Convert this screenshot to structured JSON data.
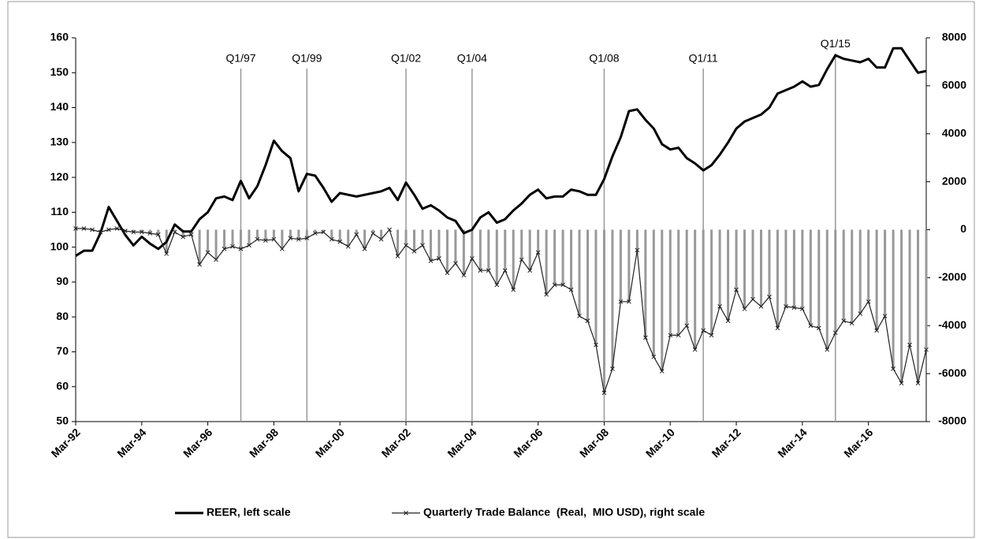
{
  "chart_data": {
    "type": "line",
    "x": [
      1992,
      1992.25,
      1992.5,
      1992.75,
      1993,
      1993.25,
      1993.5,
      1993.75,
      1994,
      1994.25,
      1994.5,
      1994.75,
      1995,
      1995.25,
      1995.5,
      1995.75,
      1996,
      1996.25,
      1996.5,
      1996.75,
      1997,
      1997.25,
      1997.5,
      1997.75,
      1998,
      1998.25,
      1998.5,
      1998.75,
      1999,
      1999.25,
      1999.5,
      1999.75,
      2000,
      2000.25,
      2000.5,
      2000.75,
      2001,
      2001.25,
      2001.5,
      2001.75,
      2002,
      2002.25,
      2002.5,
      2002.75,
      2003,
      2003.25,
      2003.5,
      2003.75,
      2004,
      2004.25,
      2004.5,
      2004.75,
      2005,
      2005.25,
      2005.5,
      2005.75,
      2006,
      2006.25,
      2006.5,
      2006.75,
      2007,
      2007.25,
      2007.5,
      2007.75,
      2008,
      2008.25,
      2008.5,
      2008.75,
      2009,
      2009.25,
      2009.5,
      2009.75,
      2010,
      2010.25,
      2010.5,
      2010.75,
      2011,
      2011.25,
      2011.5,
      2011.75,
      2012,
      2012.25,
      2012.5,
      2012.75,
      2013,
      2013.25,
      2013.5,
      2013.75,
      2014,
      2014.25,
      2014.5,
      2014.75,
      2015,
      2015.25,
      2015.5,
      2015.75,
      2016,
      2016.25,
      2016.5,
      2016.75,
      2017,
      2017.25,
      2017.5,
      2017.75
    ],
    "xlim": [
      1992,
      2017.75
    ],
    "xticks": [
      {
        "value": 1992,
        "label": "Mar-92"
      },
      {
        "value": 1994,
        "label": "Mar-94"
      },
      {
        "value": 1996,
        "label": "Mar-96"
      },
      {
        "value": 1998,
        "label": "Mar-98"
      },
      {
        "value": 2000,
        "label": "Mar-00"
      },
      {
        "value": 2002,
        "label": "Mar-02"
      },
      {
        "value": 2004,
        "label": "Mar-04"
      },
      {
        "value": 2006,
        "label": "Mar-06"
      },
      {
        "value": 2008,
        "label": "Mar-08"
      },
      {
        "value": 2010,
        "label": "Mar-10"
      },
      {
        "value": 2012,
        "label": "Mar-12"
      },
      {
        "value": 2014,
        "label": "Mar-14"
      },
      {
        "value": 2016,
        "label": "Mar-16"
      }
    ],
    "ylim": [
      50,
      160
    ],
    "yticks": [
      50,
      60,
      70,
      80,
      90,
      100,
      110,
      120,
      130,
      140,
      150,
      160
    ],
    "y2lim": [
      -8000,
      8000
    ],
    "y2ticks": [
      -8000,
      -6000,
      -4000,
      -2000,
      0,
      2000,
      4000,
      6000,
      8000
    ],
    "grid": false,
    "annotations": [
      {
        "text": "Q1/97",
        "x": 1997
      },
      {
        "text": "Q1/99",
        "x": 1999
      },
      {
        "text": "Q1/02",
        "x": 2002
      },
      {
        "text": "Q1/04",
        "x": 2004
      },
      {
        "text": "Q1/08",
        "x": 2008
      },
      {
        "text": "Q1/11",
        "x": 2011
      },
      {
        "text": "Q1/15",
        "x": 2015
      }
    ],
    "series": [
      {
        "name": "REER, left scale",
        "color": "#000000",
        "axis": "y",
        "values": [
          97.5,
          99,
          99,
          104,
          111.5,
          107.5,
          103.5,
          100.5,
          103,
          101,
          99.5,
          101.5,
          106.5,
          104.5,
          104.5,
          108,
          110,
          114,
          114.5,
          113.5,
          119,
          114,
          117.5,
          123.5,
          130.5,
          127.5,
          125.5,
          116,
          121,
          120.5,
          117,
          113,
          115.5,
          115,
          114.5,
          115,
          115.5,
          116,
          117,
          113.5,
          118.5,
          115,
          111,
          112,
          110.5,
          108.5,
          107.5,
          104,
          105,
          108.5,
          110,
          107,
          108,
          110.5,
          112.5,
          115,
          116.5,
          114,
          114.5,
          114.5,
          116.5,
          116,
          115,
          115,
          119.5,
          126,
          131.5,
          139,
          139.5,
          136.5,
          134,
          129.5,
          128,
          128.5,
          125.5,
          124,
          122,
          123.5,
          126.5,
          130,
          134,
          136,
          137,
          138,
          140,
          144,
          145,
          146,
          147.5,
          146,
          146.5,
          151,
          155,
          154,
          153.5,
          153,
          154,
          151.5,
          151.5,
          157,
          157,
          153.5,
          150,
          150.5
        ]
      },
      {
        "name": "Quarterly Trade Balance  (Real,  MIO USD), right scale",
        "color": "#999999",
        "axis": "y2",
        "values": [
          50,
          50,
          0,
          -100,
          0,
          50,
          -50,
          -100,
          -100,
          -150,
          -200,
          -1000,
          -100,
          -300,
          -200,
          -1450,
          -950,
          -1250,
          -800,
          -700,
          -800,
          -650,
          -400,
          -450,
          -400,
          -800,
          -350,
          -400,
          -350,
          -150,
          -100,
          -400,
          -500,
          -700,
          -200,
          -800,
          -150,
          -400,
          0,
          -1100,
          -650,
          -900,
          -650,
          -1300,
          -1200,
          -1800,
          -1400,
          -1900,
          -1200,
          -1700,
          -1700,
          -2300,
          -1700,
          -2500,
          -1250,
          -1700,
          -950,
          -2700,
          -2300,
          -2300,
          -2500,
          -3600,
          -3800,
          -4800,
          -6800,
          -5800,
          -3000,
          -3000,
          -850,
          -4500,
          -5300,
          -5900,
          -4400,
          -4400,
          -4000,
          -5000,
          -4200,
          -4400,
          -3200,
          -3800,
          -2500,
          -3300,
          -2900,
          -3200,
          -2800,
          -4100,
          -3200,
          -3250,
          -3300,
          -4000,
          -4100,
          -5000,
          -4300,
          -3800,
          -3900,
          -3500,
          -3000,
          -4200,
          -3600,
          -5800,
          -6400,
          -4800,
          -6400,
          -5000
        ]
      }
    ]
  }
}
